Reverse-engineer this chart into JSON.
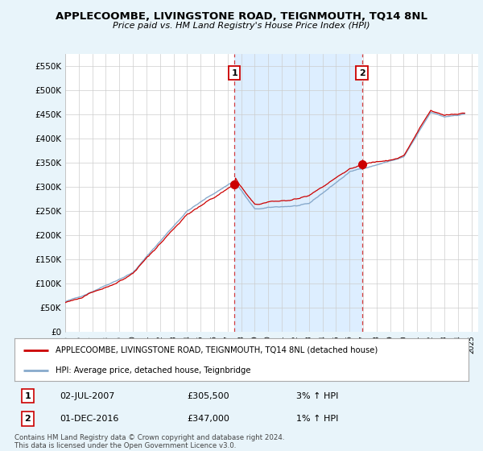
{
  "title": "APPLECOOMBE, LIVINGSTONE ROAD, TEIGNMOUTH, TQ14 8NL",
  "subtitle": "Price paid vs. HM Land Registry's House Price Index (HPI)",
  "red_label": "APPLECOOMBE, LIVINGSTONE ROAD, TEIGNMOUTH, TQ14 8NL (detached house)",
  "blue_label": "HPI: Average price, detached house, Teignbridge",
  "ylim": [
    0,
    575000
  ],
  "yticks": [
    0,
    50000,
    100000,
    150000,
    200000,
    250000,
    300000,
    350000,
    400000,
    450000,
    500000,
    550000
  ],
  "ytick_labels": [
    "£0",
    "£50K",
    "£100K",
    "£150K",
    "£200K",
    "£250K",
    "£300K",
    "£350K",
    "£400K",
    "£450K",
    "£500K",
    "£550K"
  ],
  "xlim_start": 1995.0,
  "xlim_end": 2025.5,
  "marker1_x": 2007.5,
  "marker1_label": "1",
  "marker1_date": "02-JUL-2007",
  "marker1_price": "£305,500",
  "marker1_hpi": "3% ↑ HPI",
  "marker1_y": 305500,
  "marker2_x": 2016.917,
  "marker2_label": "2",
  "marker2_date": "01-DEC-2016",
  "marker2_price": "£347,000",
  "marker2_hpi": "1% ↑ HPI",
  "marker2_y": 347000,
  "bg_color": "#e8f4fa",
  "plot_bg_color": "#ffffff",
  "grid_color": "#cccccc",
  "shade_color": "#ddeeff",
  "red_line_color": "#cc0000",
  "blue_line_color": "#88aacc",
  "footer": "Contains HM Land Registry data © Crown copyright and database right 2024.\nThis data is licensed under the Open Government Licence v3.0."
}
